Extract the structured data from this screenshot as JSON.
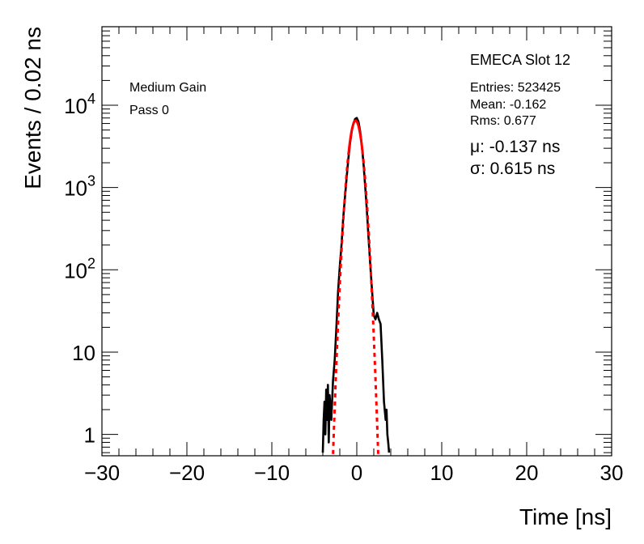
{
  "chart_data": {
    "type": "line",
    "title": "EMECA Slot 12",
    "xlabel": "Time [ns]",
    "ylabel": "Events / 0.02 ns",
    "xlim": [
      -30,
      30
    ],
    "ylim": [
      0.55,
      90000
    ],
    "yscale": "log",
    "x_ticks": [
      "−30",
      "−20",
      "−10",
      "0",
      "10",
      "20",
      "30"
    ],
    "x_tick_values": [
      -30,
      -20,
      -10,
      0,
      10,
      20,
      30
    ],
    "y_ticks": [
      {
        "value": 1,
        "base": "1",
        "exp": ""
      },
      {
        "value": 10,
        "base": "10",
        "exp": ""
      },
      {
        "value": 100,
        "base": "10",
        "exp": "2"
      },
      {
        "value": 1000,
        "base": "10",
        "exp": "3"
      },
      {
        "value": 10000,
        "base": "10",
        "exp": "4"
      }
    ],
    "annotations": {
      "gain": "Medium Gain",
      "pass": "Pass 0"
    },
    "stats": {
      "entries": "Entries: 523425",
      "mean": "Mean: -0.162",
      "rms": "Rms: 0.677"
    },
    "fit": {
      "mu_text": "μ: -0.137 ns",
      "sigma_text": "σ: 0.615 ns",
      "mu": -0.137,
      "sigma": 0.615,
      "peak": 6500,
      "color": "#ff0000"
    },
    "series": [
      {
        "color": "#000000",
        "x": [
          -4.0,
          -3.9,
          -3.8,
          -3.7,
          -3.6,
          -3.5,
          -3.4,
          -3.3,
          -3.2,
          -3.0,
          -2.8,
          -2.6,
          -2.4,
          -2.2,
          -2.0,
          -1.8,
          -1.6,
          -1.4,
          -1.2,
          -1.0,
          -0.8,
          -0.6,
          -0.4,
          -0.2,
          0.0,
          0.2,
          0.4,
          0.6,
          0.8,
          1.0,
          1.2,
          1.4,
          1.6,
          1.8,
          2.0,
          2.2,
          2.4,
          2.6,
          2.8,
          3.0,
          3.2,
          3.4,
          3.5,
          3.6,
          3.7,
          3.8
        ],
        "y": [
          0.6,
          1.5,
          2.5,
          1.0,
          3.5,
          1.5,
          4.0,
          0.8,
          3.0,
          1.5,
          4.5,
          8,
          20,
          55,
          110,
          200,
          420,
          750,
          1300,
          2200,
          3400,
          4800,
          6000,
          6800,
          7000,
          6300,
          4800,
          3200,
          1900,
          1000,
          500,
          230,
          110,
          55,
          28,
          25,
          30,
          25,
          22,
          8,
          2.5,
          1.5,
          2.0,
          1.0,
          0.8,
          0.6
        ]
      }
    ]
  }
}
